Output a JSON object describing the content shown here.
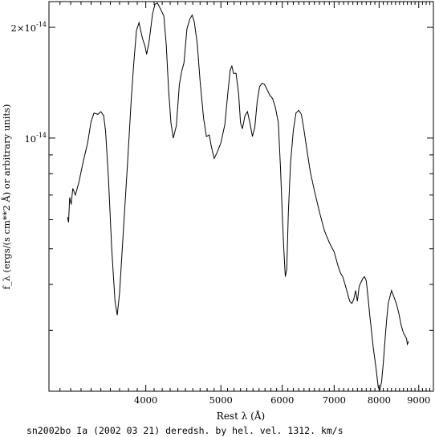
{
  "chart_data": {
    "type": "line",
    "title": "",
    "caption": "sn2002bo Ia (2002 03 21) deredsh. by hel. vel.  1312. km/s",
    "xlabel": "Rest λ (Å)",
    "ylabel": "f_λ (ergs/(s cm**2 Å) or arbitrary units)",
    "xscale": "log",
    "yscale": "log",
    "xlim": [
      3000,
      9400
    ],
    "ylim": [
      2.05e-15,
      2.35e-14
    ],
    "grid": false,
    "legend": "none",
    "x_ticks": [
      {
        "value": 4000,
        "label": "4000"
      },
      {
        "value": 5000,
        "label": "5000"
      },
      {
        "value": 6000,
        "label": "6000"
      },
      {
        "value": 7000,
        "label": "7000"
      },
      {
        "value": 8000,
        "label": "8000"
      },
      {
        "value": 9000,
        "label": "9000"
      }
    ],
    "y_ticks": [
      {
        "value": 2e-14,
        "label": "2×10",
        "exp": "-14"
      },
      {
        "value": 1e-14,
        "label": "10",
        "exp": "-14"
      }
    ],
    "series": [
      {
        "color": "#000000",
        "points": [
          [
            3170,
            6.1e-15
          ],
          [
            3180,
            5.9e-15
          ],
          [
            3190,
            6.9e-15
          ],
          [
            3205,
            6.6e-15
          ],
          [
            3220,
            7.3e-15
          ],
          [
            3245,
            7e-15
          ],
          [
            3280,
            7.6e-15
          ],
          [
            3320,
            8.6e-15
          ],
          [
            3365,
            9.7e-15
          ],
          [
            3400,
            1.11e-14
          ],
          [
            3430,
            1.17e-14
          ],
          [
            3470,
            1.16e-14
          ],
          [
            3500,
            1.18e-14
          ],
          [
            3530,
            1.15e-14
          ],
          [
            3550,
            1.04e-14
          ],
          [
            3580,
            7.8e-15
          ],
          [
            3615,
            5e-15
          ],
          [
            3650,
            3.6e-15
          ],
          [
            3675,
            3.3e-15
          ],
          [
            3700,
            3.8e-15
          ],
          [
            3740,
            5.5e-15
          ],
          [
            3790,
            8.6e-15
          ],
          [
            3830,
            1.26e-14
          ],
          [
            3860,
            1.6e-14
          ],
          [
            3890,
            1.96e-14
          ],
          [
            3920,
            2.06e-14
          ],
          [
            3960,
            1.87e-14
          ],
          [
            3990,
            1.78e-14
          ],
          [
            4010,
            1.69e-14
          ],
          [
            4040,
            1.83e-14
          ],
          [
            4080,
            2.17e-14
          ],
          [
            4110,
            2.31e-14
          ],
          [
            4140,
            2.33e-14
          ],
          [
            4180,
            2.24e-14
          ],
          [
            4220,
            2.15e-14
          ],
          [
            4250,
            1.8e-14
          ],
          [
            4280,
            1.36e-14
          ],
          [
            4310,
            1.1e-14
          ],
          [
            4340,
            1e-14
          ],
          [
            4380,
            1.08e-14
          ],
          [
            4420,
            1.4e-14
          ],
          [
            4450,
            1.52e-14
          ],
          [
            4480,
            1.6e-14
          ],
          [
            4520,
            1.98e-14
          ],
          [
            4560,
            2.11e-14
          ],
          [
            4590,
            2.16e-14
          ],
          [
            4620,
            2.07e-14
          ],
          [
            4660,
            1.81e-14
          ],
          [
            4700,
            1.43e-14
          ],
          [
            4750,
            1.13e-14
          ],
          [
            4790,
            1.01e-14
          ],
          [
            4830,
            1.02e-14
          ],
          [
            4860,
            9.5e-15
          ],
          [
            4900,
            8.8e-15
          ],
          [
            4940,
            9.1e-15
          ],
          [
            5000,
            9.7e-15
          ],
          [
            5060,
            1.09e-14
          ],
          [
            5100,
            1.3e-14
          ],
          [
            5140,
            1.53e-14
          ],
          [
            5165,
            1.57e-14
          ],
          [
            5190,
            1.5e-14
          ],
          [
            5230,
            1.5e-14
          ],
          [
            5270,
            1.32e-14
          ],
          [
            5300,
            1.1e-14
          ],
          [
            5330,
            1.06e-14
          ],
          [
            5370,
            1.15e-14
          ],
          [
            5410,
            1.18e-14
          ],
          [
            5450,
            1.1e-14
          ],
          [
            5490,
            1.01e-14
          ],
          [
            5530,
            1.07e-14
          ],
          [
            5570,
            1.26e-14
          ],
          [
            5610,
            1.38e-14
          ],
          [
            5650,
            1.41e-14
          ],
          [
            5690,
            1.4e-14
          ],
          [
            5740,
            1.35e-14
          ],
          [
            5780,
            1.31e-14
          ],
          [
            5830,
            1.28e-14
          ],
          [
            5880,
            1.21e-14
          ],
          [
            5930,
            1.1e-14
          ],
          [
            5970,
            8.2e-15
          ],
          [
            6000,
            6.2e-15
          ],
          [
            6030,
            4.9e-15
          ],
          [
            6055,
            4.2e-15
          ],
          [
            6080,
            4.4e-15
          ],
          [
            6110,
            6.3e-15
          ],
          [
            6150,
            8.6e-15
          ],
          [
            6200,
            1.05e-14
          ],
          [
            6250,
            1.17e-14
          ],
          [
            6300,
            1.19e-14
          ],
          [
            6350,
            1.16e-14
          ],
          [
            6400,
            1.05e-14
          ],
          [
            6460,
            9.2e-15
          ],
          [
            6520,
            8.1e-15
          ],
          [
            6600,
            7.2e-15
          ],
          [
            6700,
            6.3e-15
          ],
          [
            6800,
            5.6e-15
          ],
          [
            6900,
            5.2e-15
          ],
          [
            7000,
            4.9e-15
          ],
          [
            7080,
            4.5e-15
          ],
          [
            7130,
            4.3e-15
          ],
          [
            7180,
            4.2e-15
          ],
          [
            7230,
            4e-15
          ],
          [
            7280,
            3.8e-15
          ],
          [
            7330,
            3.6e-15
          ],
          [
            7380,
            3.55e-15
          ],
          [
            7420,
            3.65e-15
          ],
          [
            7460,
            3.85e-15
          ],
          [
            7500,
            3.6e-15
          ],
          [
            7540,
            3.95e-15
          ],
          [
            7580,
            4.05e-15
          ],
          [
            7620,
            4.15e-15
          ],
          [
            7660,
            4.2e-15
          ],
          [
            7700,
            4.1e-15
          ],
          [
            7740,
            3.7e-15
          ],
          [
            7780,
            3.3e-15
          ],
          [
            7820,
            3e-15
          ],
          [
            7860,
            2.7e-15
          ],
          [
            7900,
            2.5e-15
          ],
          [
            7940,
            2.3e-15
          ],
          [
            7980,
            2.1e-15
          ],
          [
            8020,
            2.07e-15
          ],
          [
            8060,
            2.18e-15
          ],
          [
            8100,
            2.45e-15
          ],
          [
            8140,
            2.8e-15
          ],
          [
            8180,
            3.2e-15
          ],
          [
            8220,
            3.55e-15
          ],
          [
            8260,
            3.7e-15
          ],
          [
            8300,
            3.85e-15
          ],
          [
            8360,
            3.7e-15
          ],
          [
            8420,
            3.55e-15
          ],
          [
            8480,
            3.35e-15
          ],
          [
            8540,
            3.1e-15
          ],
          [
            8600,
            2.95e-15
          ],
          [
            8640,
            2.9e-15
          ],
          [
            8680,
            2.85e-15
          ],
          [
            8700,
            2.75e-15
          ],
          [
            8730,
            2.8e-15
          ]
        ]
      }
    ]
  }
}
